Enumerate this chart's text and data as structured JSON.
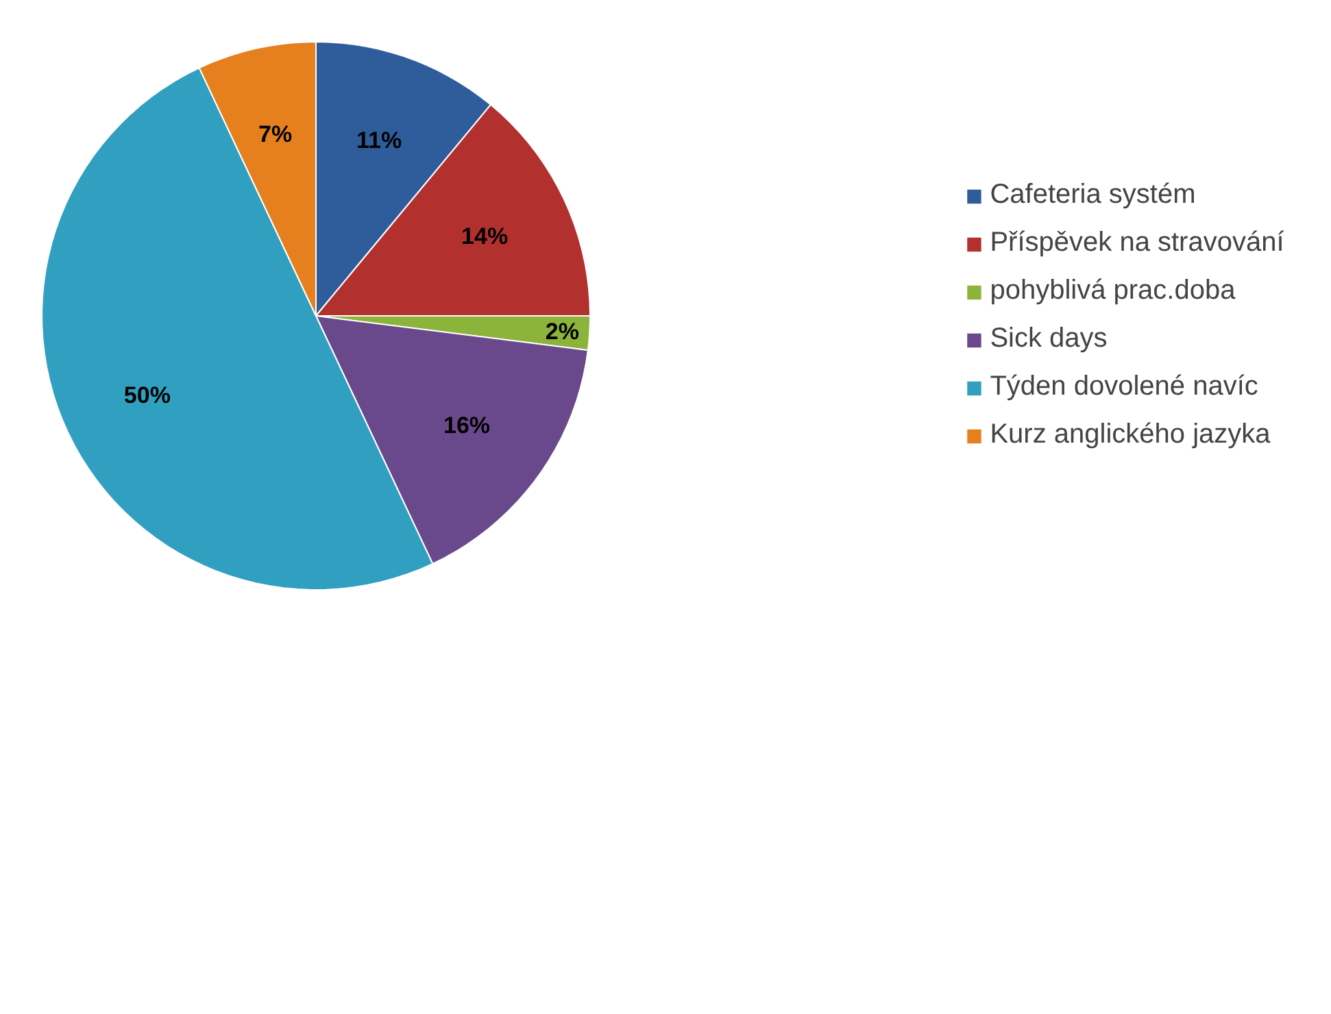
{
  "chart_data": {
    "type": "pie",
    "categories": [
      "Cafeteria systém",
      "Příspěvek na stravování",
      "pohyblivá prac.doba",
      "Sick days",
      "Týden dovolené navíc",
      "Kurz anglického jazyka"
    ],
    "values": [
      11,
      14,
      2,
      16,
      50,
      7
    ],
    "value_labels": [
      "11%",
      "14%",
      "2%",
      "16%",
      "50%",
      "7%"
    ],
    "colors": [
      "#2f5d9b",
      "#b2302d",
      "#8cb33a",
      "#69498b",
      "#31a0c0",
      "#e6801f"
    ],
    "legend": "right"
  }
}
